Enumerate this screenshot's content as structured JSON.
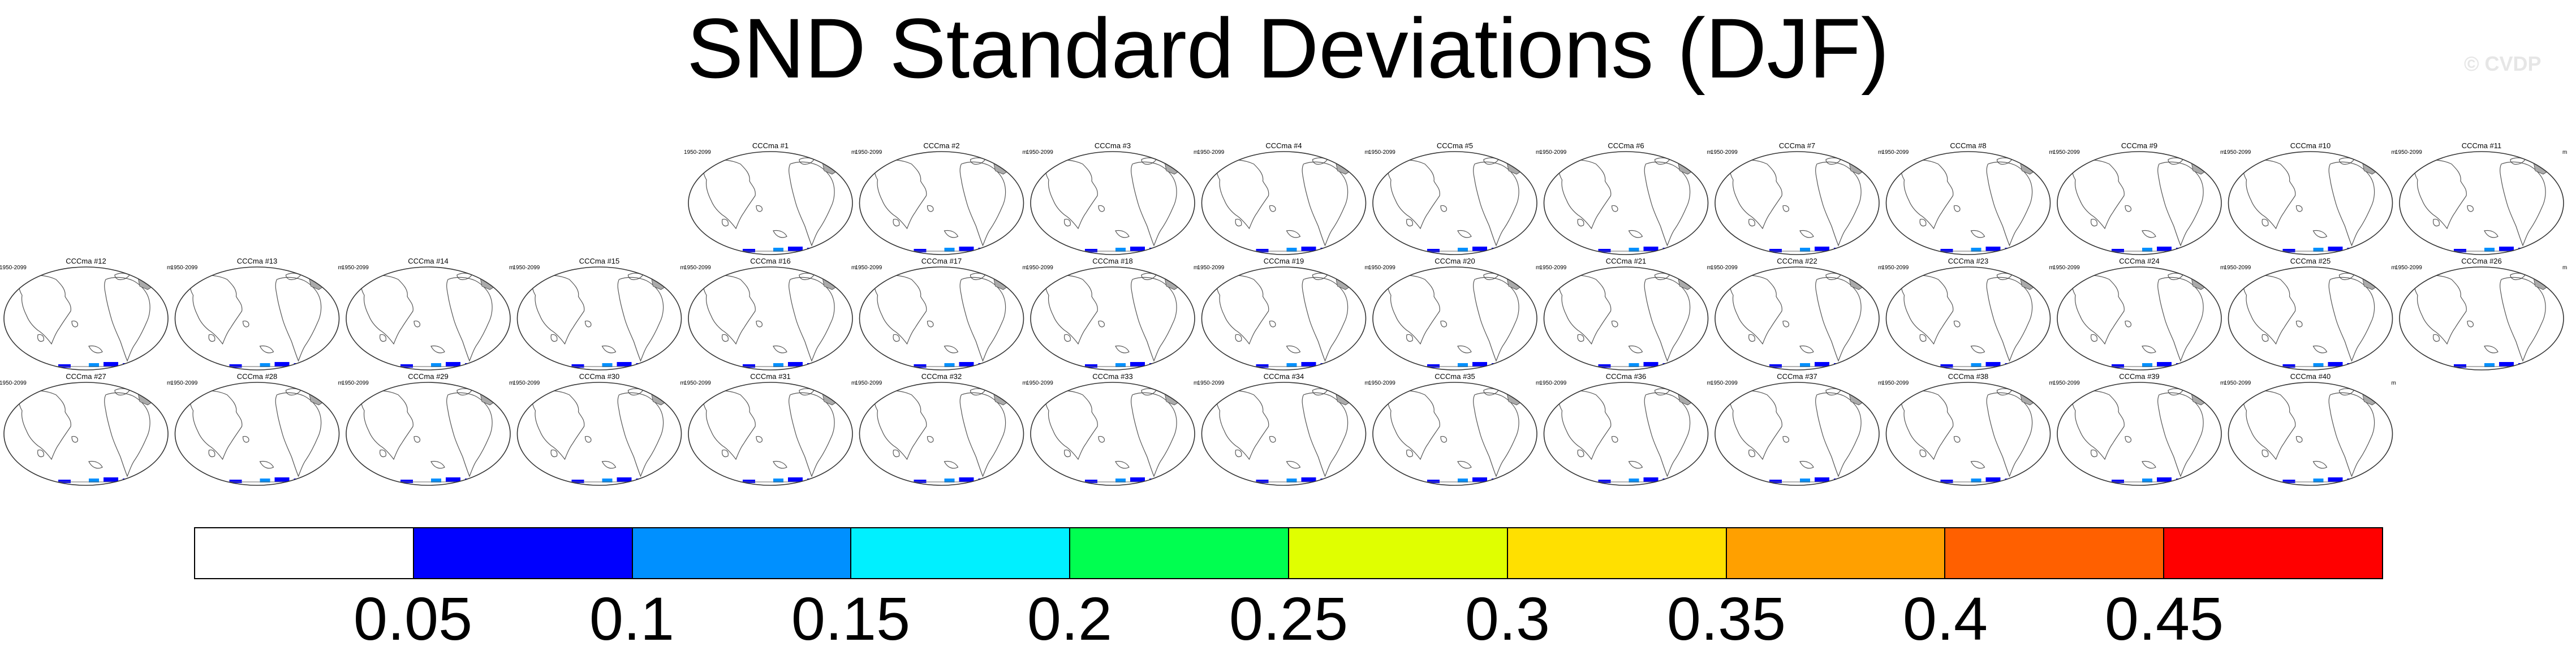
{
  "title": "SND Standard Deviations (DJF)",
  "watermark": "© CVDP",
  "panel_year_range": "1950-2099",
  "panel_pct": "m",
  "panel_rows": [
    [
      "CCCma #1",
      "CCCma #2",
      "CCCma #3",
      "CCCma #4",
      "CCCma #5",
      "CCCma #6",
      "CCCma #7",
      "CCCma #8",
      "CCCma #9",
      "CCCma #10",
      "CCCma #11"
    ],
    [
      "CCCma #12",
      "CCCma #13",
      "CCCma #14",
      "CCCma #15",
      "CCCma #16",
      "CCCma #17",
      "CCCma #18",
      "CCCma #19",
      "CCCma #20",
      "CCCma #21",
      "CCCma #22",
      "CCCma #23",
      "CCCma #24",
      "CCCma #25",
      "CCCma #26"
    ],
    [
      "CCCma #27",
      "CCCma #28",
      "CCCma #29",
      "CCCma #30",
      "CCCma #31",
      "CCCma #32",
      "CCCma #33",
      "CCCma #34",
      "CCCma #35",
      "CCCma #36",
      "CCCma #37",
      "CCCma #38",
      "CCCma #39",
      "CCCma #40"
    ]
  ],
  "colorbar": {
    "colors": [
      "#ffffff",
      "#0000ff",
      "#0090ff",
      "#00f0ff",
      "#00ff50",
      "#e0ff00",
      "#ffe000",
      "#ffa000",
      "#ff6000",
      "#ff0000"
    ],
    "labels": [
      "0.05",
      "0.1",
      "0.15",
      "0.2",
      "0.25",
      "0.3",
      "0.35",
      "0.4",
      "0.45"
    ]
  },
  "map_colors": {
    "land": "#ffffff",
    "coast": "#555555",
    "snow_high": "#0000ff",
    "snow_mid": "#0090ff",
    "snow_low": "#00f0ff"
  }
}
